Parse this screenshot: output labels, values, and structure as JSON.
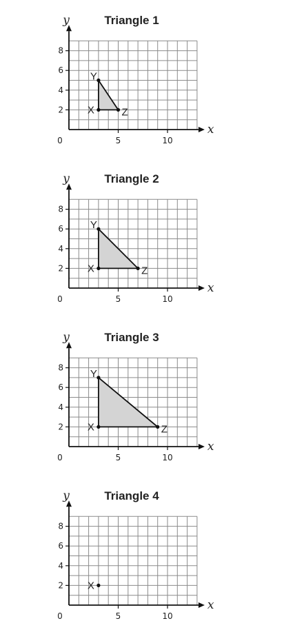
{
  "panels": [
    {
      "title": "Triangle 1",
      "x_axis_label": "x",
      "y_axis_label": "y",
      "origin_label": "0",
      "x_ticks": [
        5,
        10
      ],
      "y_ticks": [
        2,
        4,
        6,
        8
      ],
      "grid": {
        "x_max": 13,
        "y_max": 9
      },
      "shaded": true,
      "points": [
        {
          "label": "X",
          "x": 3,
          "y": 2
        },
        {
          "label": "Y",
          "x": 3,
          "y": 5
        },
        {
          "label": "Z",
          "x": 5,
          "y": 2
        }
      ]
    },
    {
      "title": "Triangle 2",
      "x_axis_label": "x",
      "y_axis_label": "y",
      "origin_label": "0",
      "x_ticks": [
        5,
        10
      ],
      "y_ticks": [
        2,
        4,
        6,
        8
      ],
      "grid": {
        "x_max": 13,
        "y_max": 9
      },
      "shaded": true,
      "points": [
        {
          "label": "X",
          "x": 3,
          "y": 2
        },
        {
          "label": "Y",
          "x": 3,
          "y": 6
        },
        {
          "label": "Z",
          "x": 7,
          "y": 2
        }
      ]
    },
    {
      "title": "Triangle 3",
      "x_axis_label": "x",
      "y_axis_label": "y",
      "origin_label": "0",
      "x_ticks": [
        5,
        10
      ],
      "y_ticks": [
        2,
        4,
        6,
        8
      ],
      "grid": {
        "x_max": 13,
        "y_max": 9
      },
      "shaded": true,
      "points": [
        {
          "label": "X",
          "x": 3,
          "y": 2
        },
        {
          "label": "Y",
          "x": 3,
          "y": 7
        },
        {
          "label": "Z",
          "x": 9,
          "y": 2
        }
      ]
    },
    {
      "title": "Triangle 4",
      "x_axis_label": "x",
      "y_axis_label": "y",
      "origin_label": "0",
      "x_ticks": [
        5,
        10
      ],
      "y_ticks": [
        2,
        4,
        6,
        8
      ],
      "grid": {
        "x_max": 13,
        "y_max": 9
      },
      "shaded": false,
      "points": [
        {
          "label": "X",
          "x": 3,
          "y": 2
        }
      ]
    }
  ],
  "colors": {
    "grid": "#8a8a8a",
    "axis": "#111111",
    "fill": "#d4d4d4",
    "stroke": "#111111"
  }
}
